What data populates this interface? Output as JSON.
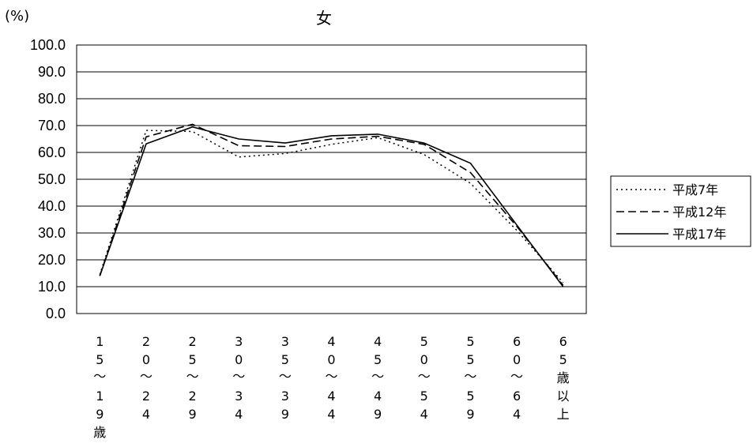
{
  "chart_data": {
    "type": "line",
    "title": "女",
    "unit_label": "(%)",
    "ylim": [
      0,
      100
    ],
    "y_ticks": [
      "100.0",
      "90.0",
      "80.0",
      "70.0",
      "60.0",
      "50.0",
      "40.0",
      "30.0",
      "20.0",
      "10.0",
      "0.0"
    ],
    "grid": true,
    "legend_position": "right",
    "categories": [
      {
        "chars": [
          "1",
          "5",
          "〜",
          "1",
          "9",
          "歳"
        ]
      },
      {
        "chars": [
          "2",
          "0",
          "〜",
          "2",
          "4"
        ]
      },
      {
        "chars": [
          "2",
          "5",
          "〜",
          "2",
          "9"
        ]
      },
      {
        "chars": [
          "3",
          "0",
          "〜",
          "3",
          "4"
        ]
      },
      {
        "chars": [
          "3",
          "5",
          "〜",
          "3",
          "9"
        ]
      },
      {
        "chars": [
          "4",
          "0",
          "〜",
          "4",
          "4"
        ]
      },
      {
        "chars": [
          "4",
          "5",
          "〜",
          "4",
          "9"
        ]
      },
      {
        "chars": [
          "5",
          "0",
          "〜",
          "5",
          "4"
        ]
      },
      {
        "chars": [
          "5",
          "5",
          "〜",
          "5",
          "9"
        ]
      },
      {
        "chars": [
          "6",
          "0",
          "〜",
          "6",
          "4"
        ]
      },
      {
        "chars": [
          "6",
          "5",
          "歳",
          "以",
          "上"
        ]
      }
    ],
    "series": [
      {
        "name": "平成7年",
        "dash": "dotted",
        "values": [
          14.5,
          68.2,
          67.8,
          58.3,
          59.6,
          63.0,
          65.5,
          59.2,
          48.5,
          31.0,
          11.5
        ]
      },
      {
        "name": "平成12年",
        "dash": "dashed",
        "values": [
          14.0,
          65.8,
          70.5,
          62.5,
          62.2,
          65.0,
          66.0,
          63.0,
          52.5,
          32.5,
          10.5
        ]
      },
      {
        "name": "平成17年",
        "dash": "solid",
        "values": [
          14.0,
          63.2,
          69.5,
          65.0,
          63.5,
          66.2,
          66.8,
          63.5,
          56.0,
          33.0,
          10.0
        ]
      }
    ]
  }
}
